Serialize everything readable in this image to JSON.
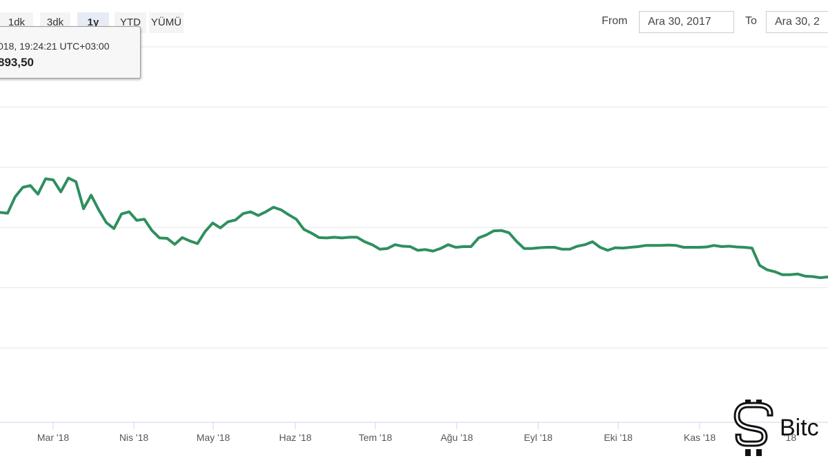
{
  "range_selector": {
    "buttons": [
      {
        "label": "1dk",
        "active": false
      },
      {
        "label": "3dk",
        "active": false
      },
      {
        "label": "1y",
        "active": true
      },
      {
        "label": "YTD",
        "active": false
      },
      {
        "label": "YÜMÜ",
        "active": false
      }
    ]
  },
  "date_range": {
    "from_label": "From",
    "from_value": "Ara 30, 2017",
    "to_label": "To",
    "to_value": "Ara 30, 2"
  },
  "tooltip": {
    "date_text": "018, 19:24:21 UTC+03:00",
    "value_text": "893,50"
  },
  "watermark": {
    "text": "Bitc",
    "icon": "bitcoin-logo-icon"
  },
  "colors": {
    "line": "#2f8f5f",
    "grid": "#e6e6e6",
    "axis": "#ccd6eb"
  },
  "chart_data": {
    "type": "line",
    "title": "",
    "xlabel": "",
    "ylabel": "",
    "x_tick_labels": [
      "Mar '18",
      "Nis '18",
      "May '18",
      "Haz '18",
      "Tem '18",
      "Ağu '18",
      "Eyl '18",
      "Eki '18",
      "Kas '18",
      "'18"
    ],
    "grid": true,
    "series": [
      {
        "values": [
          0.558,
          0.556,
          0.6,
          0.625,
          0.63,
          0.607,
          0.648,
          0.645,
          0.613,
          0.65,
          0.64,
          0.568,
          0.604,
          0.565,
          0.531,
          0.515,
          0.554,
          0.56,
          0.537,
          0.54,
          0.51,
          0.49,
          0.489,
          0.473,
          0.491,
          0.482,
          0.475,
          0.507,
          0.53,
          0.517,
          0.533,
          0.538,
          0.555,
          0.56,
          0.55,
          0.56,
          0.572,
          0.565,
          0.552,
          0.54,
          0.513,
          0.503,
          0.491,
          0.49,
          0.492,
          0.49,
          0.492,
          0.492,
          0.48,
          0.472,
          0.46,
          0.462,
          0.472,
          0.468,
          0.467,
          0.457,
          0.459,
          0.455,
          0.462,
          0.472,
          0.465,
          0.467,
          0.467,
          0.49,
          0.498,
          0.509,
          0.51,
          0.504,
          0.481,
          0.462,
          0.462,
          0.464,
          0.465,
          0.465,
          0.46,
          0.46,
          0.468,
          0.472,
          0.48,
          0.465,
          0.457,
          0.464,
          0.463,
          0.465,
          0.467,
          0.47,
          0.47,
          0.47,
          0.471,
          0.47,
          0.465,
          0.465,
          0.465,
          0.466,
          0.47,
          0.467,
          0.468,
          0.466,
          0.465,
          0.463,
          0.417,
          0.405,
          0.4,
          0.392,
          0.392,
          0.394,
          0.388,
          0.387,
          0.384,
          0.386
        ]
      }
    ]
  }
}
